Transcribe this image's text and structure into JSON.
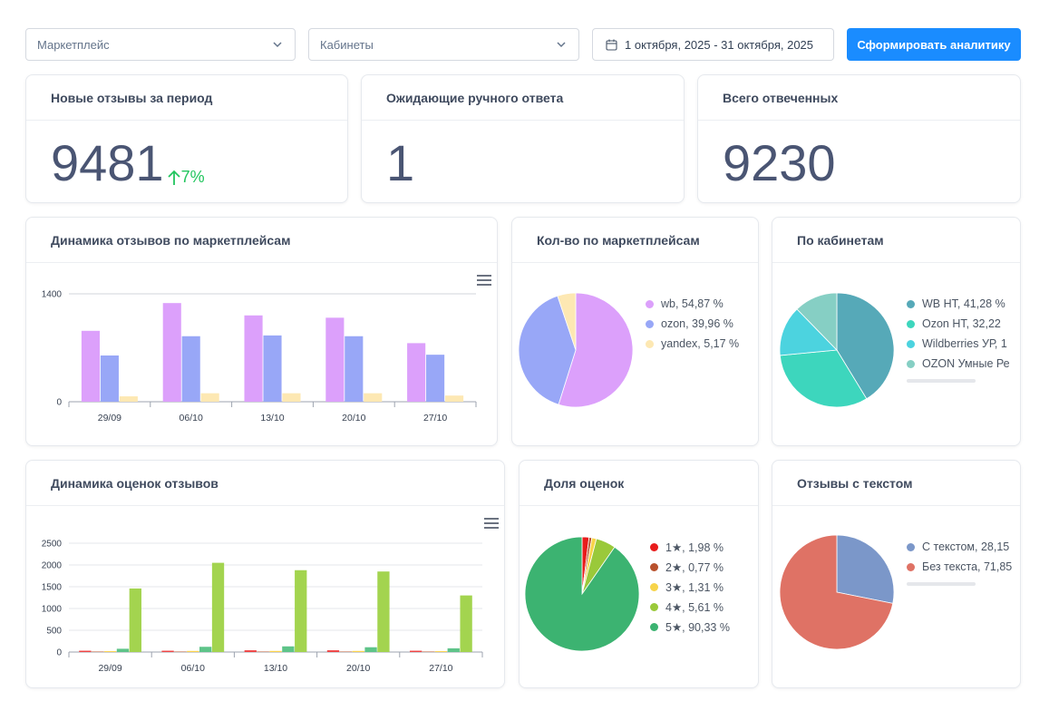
{
  "filters": {
    "marketplace_placeholder": "Маркетплейс",
    "cabinet_placeholder": "Кабинеты",
    "date_range": "1 октября, 2025 - 31 октября, 2025",
    "generate_button": "Сформировать аналитику"
  },
  "kpis": {
    "new_reviews": {
      "title": "Новые отзывы за период",
      "value": "9481",
      "delta": "7%"
    },
    "pending_manual": {
      "title": "Ожидающие ручного ответа",
      "value": "1"
    },
    "total_answered": {
      "title": "Всего отвеченных",
      "value": "9230"
    }
  },
  "charts": {
    "reviews_dynamics": {
      "title": "Динамика отзывов по маркетплейсам"
    },
    "by_marketplace": {
      "title": "Кол-во по маркетплейсам"
    },
    "by_cabinet": {
      "title": "По кабинетам"
    },
    "ratings_dynamics": {
      "title": "Динамика оценок отзывов"
    },
    "ratings_share": {
      "title": "Доля оценок"
    },
    "with_text": {
      "title": "Отзывы с текстом"
    }
  },
  "chart_data": [
    {
      "type": "bar",
      "title": "Динамика отзывов по маркетплейсам",
      "categories": [
        "29/09",
        "06/10",
        "13/10",
        "20/10",
        "27/10"
      ],
      "series": [
        {
          "name": "wb",
          "color": "#dca0fb",
          "values": [
            920,
            1280,
            1120,
            1090,
            760
          ]
        },
        {
          "name": "ozon",
          "color": "#98a7f7",
          "values": [
            600,
            850,
            860,
            850,
            610
          ]
        },
        {
          "name": "yandex",
          "color": "#fde8b3",
          "values": [
            70,
            110,
            110,
            110,
            80
          ]
        }
      ],
      "yticks": [
        "0",
        "1400"
      ],
      "ylim": [
        0,
        1400
      ],
      "grid": false
    },
    {
      "type": "pie",
      "title": "Кол-во по маркетплейсам",
      "slices": [
        {
          "label": "wb, 54,87 %",
          "value": 54.87,
          "color": "#dca0fb"
        },
        {
          "label": "ozon, 39,96 %",
          "value": 39.96,
          "color": "#98a7f7"
        },
        {
          "label": "yandex, 5,17 %",
          "value": 5.17,
          "color": "#fde8b3"
        }
      ],
      "legend": "right"
    },
    {
      "type": "pie",
      "title": "По кабинетам",
      "slices": [
        {
          "label": "WB НТ, 41,28 %",
          "value": 41.28,
          "color": "#56a9b8"
        },
        {
          "label": "Ozon НТ, 32,22",
          "value": 32.22,
          "color": "#3dd6bd"
        },
        {
          "label": "Wildberries УР, 1",
          "value": 14.2,
          "color": "#4cd3df"
        },
        {
          "label": "OZON Умные Ре",
          "value": 12.3,
          "color": "#86cfc4"
        }
      ],
      "legend": "right"
    },
    {
      "type": "bar",
      "title": "Динамика оценок отзывов",
      "categories": [
        "29/09",
        "06/10",
        "13/10",
        "20/10",
        "27/10"
      ],
      "series": [
        {
          "name": "1★",
          "color": "#ef4444",
          "values": [
            30,
            30,
            40,
            40,
            30
          ]
        },
        {
          "name": "2★",
          "color": "#c2592f",
          "values": [
            10,
            10,
            10,
            10,
            10
          ]
        },
        {
          "name": "3★",
          "color": "#fcd34d",
          "values": [
            20,
            25,
            25,
            25,
            20
          ]
        },
        {
          "name": "4★",
          "color": "#5ec489",
          "values": [
            75,
            120,
            130,
            110,
            85
          ]
        },
        {
          "name": "5★",
          "color": "#a3d44f",
          "values": [
            1460,
            2050,
            1880,
            1850,
            1300
          ]
        }
      ],
      "yticks": [
        "0",
        "500",
        "1000",
        "1500",
        "2000",
        "2500"
      ],
      "ylim": [
        0,
        2500
      ],
      "grid": true
    },
    {
      "type": "pie",
      "title": "Доля оценок",
      "slices": [
        {
          "label": "1★, 1,98 %",
          "value": 1.98,
          "color": "#e81c1c"
        },
        {
          "label": "2★, 0,77 %",
          "value": 0.77,
          "color": "#b8512d"
        },
        {
          "label": "3★, 1,31 %",
          "value": 1.31,
          "color": "#f7d44a"
        },
        {
          "label": "4★, 5,61 %",
          "value": 5.61,
          "color": "#9ac93a"
        },
        {
          "label": "5★, 90,33 %",
          "value": 90.33,
          "color": "#3cb371"
        }
      ],
      "legend": "right"
    },
    {
      "type": "pie",
      "title": "Отзывы с текстом",
      "slices": [
        {
          "label": "С текстом, 28,15",
          "value": 28.15,
          "color": "#7b97c9"
        },
        {
          "label": "Без текста, 71,85",
          "value": 71.85,
          "color": "#df7265"
        }
      ],
      "legend": "right"
    }
  ]
}
